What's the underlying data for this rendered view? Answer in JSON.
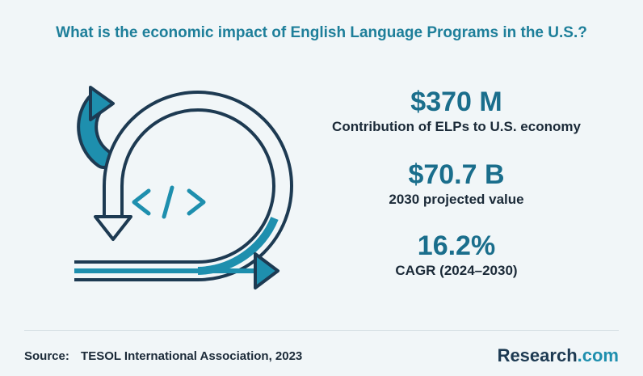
{
  "title": "What is the economic impact of English Language Programs in the U.S.?",
  "stats": [
    {
      "value": "$370 M",
      "label": "Contribution of  ELPs to U.S. economy"
    },
    {
      "value": "$70.7 B",
      "label": "2030 projected value"
    },
    {
      "value": "16.2%",
      "label": "CAGR (2024–2030)"
    }
  ],
  "source": {
    "label": "Source:",
    "text": "TESOL International Association, 2023"
  },
  "brand": {
    "name": "Research",
    "suffix": ".com"
  }
}
